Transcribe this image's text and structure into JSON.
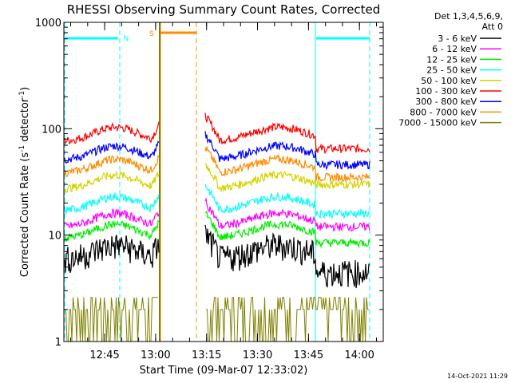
{
  "chart_data": {
    "type": "line",
    "title": "RHESSI Observing Summary Count Rates, Corrected",
    "xlabel": "Start Time (09-Mar-07 12:33:02)",
    "ylabel_main": "Corrected Count Rate (s",
    "ylabel_sup1": "-1",
    "ylabel_mid": " detector",
    "ylabel_sup2": "-1",
    "ylabel_end": ")",
    "x_ticks": [
      "12:45",
      "13:00",
      "13:15",
      "13:30",
      "13:45",
      "14:00"
    ],
    "y_ticks": [
      "1",
      "10",
      "100",
      "1000"
    ],
    "y_scale": "log",
    "x_range_minutes": [
      12.6,
      13.0,
      14.05
    ],
    "xlim": [
      "12:33:02",
      "14:07"
    ],
    "ylim": [
      1,
      1000
    ],
    "legend_header_1": "Det 1,3,4,5,6,9,",
    "legend_header_2": "Att 0",
    "footer_date": "14-Oct-2021 11:29",
    "flag_labels": {
      "night": "N",
      "saa": "S"
    },
    "series": [
      {
        "name": "3 - 6 keV",
        "color": "#000000",
        "level_day": 7,
        "level_night": 4.5
      },
      {
        "name": "6 - 12 keV",
        "color": "#ff00ff",
        "level_day": 14,
        "level_night": 12
      },
      {
        "name": "12 - 25 keV",
        "color": "#00ee00",
        "level_day": 11,
        "level_night": 8.5
      },
      {
        "name": "25 - 50 keV",
        "color": "#00ffff",
        "level_day": 20,
        "level_night": 16
      },
      {
        "name": "50 - 100 keV",
        "color": "#d4d400",
        "level_day": 32,
        "level_night": 30
      },
      {
        "name": "100 - 300 keV",
        "color": "#ff0000",
        "level_day": 90,
        "level_night": 65
      },
      {
        "name": "300 - 800 keV",
        "color": "#0000ff",
        "level_day": 60,
        "level_night": 46
      },
      {
        "name": "800 - 7000 keV",
        "color": "#ff8c00",
        "level_day": 45,
        "level_night": 35
      },
      {
        "name": "7000 - 15000 keV",
        "color": "#808000",
        "level_day": 2,
        "level_night": 2
      }
    ]
  }
}
